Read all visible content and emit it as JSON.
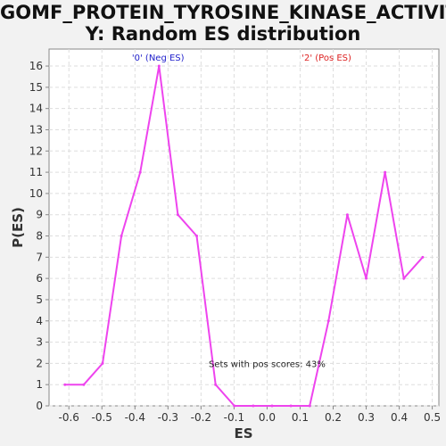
{
  "chart_data": {
    "type": "line",
    "title_line1": "GOMF_PROTEIN_TYROSINE_KINASE_ACTIVIT",
    "title_line2": "Y: Random ES distribution",
    "xlabel": "ES",
    "ylabel": "P(ES)",
    "xlim": [
      -0.66,
      0.52
    ],
    "ylim": [
      0,
      16.8
    ],
    "xticks": [
      "-0.6",
      "-0.5",
      "-0.4",
      "-0.3",
      "-0.2",
      "-0.1",
      "0.0",
      "0.1",
      "0.2",
      "0.3",
      "0.4",
      "0.5"
    ],
    "xtick_values": [
      -0.6,
      -0.5,
      -0.4,
      -0.3,
      -0.2,
      -0.1,
      0.0,
      0.1,
      0.2,
      0.3,
      0.4,
      0.5
    ],
    "yticks": [
      0,
      1,
      2,
      3,
      4,
      5,
      6,
      7,
      8,
      9,
      10,
      11,
      12,
      13,
      14,
      15,
      16
    ],
    "grid": true,
    "series": [
      {
        "color": "#ee44ee",
        "x": [
          -0.612,
          -0.555,
          -0.498,
          -0.441,
          -0.384,
          -0.327,
          -0.27,
          -0.213,
          -0.156,
          -0.099,
          -0.042,
          0.015,
          0.072,
          0.129,
          0.186,
          0.243,
          0.3,
          0.357,
          0.414,
          0.471
        ],
        "y": [
          1,
          1,
          2,
          8,
          11,
          16,
          9,
          8,
          1,
          0,
          0,
          0,
          0,
          0,
          4,
          9,
          6,
          11,
          6,
          7
        ]
      }
    ],
    "annotations": [
      {
        "text": "'0' (Neg ES)",
        "x": -0.33,
        "color": "#2222cc"
      },
      {
        "text": "'2' (Pos ES)",
        "x": 0.18,
        "color": "#dd2222"
      },
      {
        "text": "Sets with pos scores: 43%",
        "x": 0.0,
        "y": 2.0,
        "color": "#222222"
      }
    ]
  }
}
